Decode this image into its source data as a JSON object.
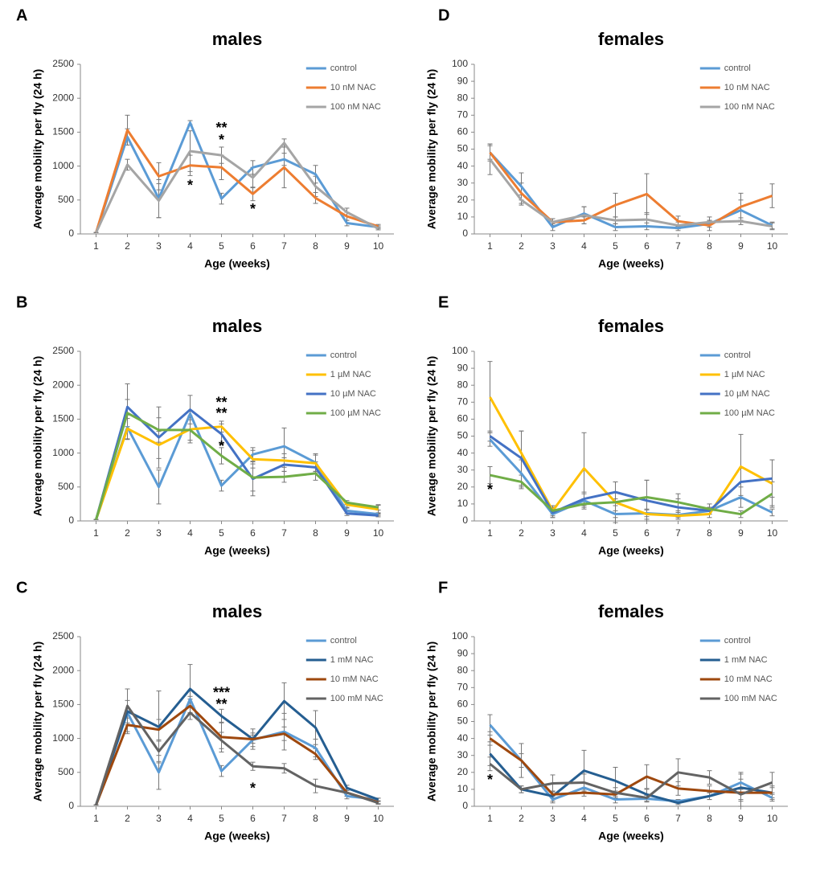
{
  "chart_data": [
    {
      "type": "line",
      "panel": "A",
      "title": "males",
      "x_label": "Age (weeks)",
      "y_label": "Average mobility per fly (24 h)",
      "x": [
        1,
        2,
        3,
        4,
        5,
        6,
        7,
        8,
        9,
        10
      ],
      "xlim": [
        0.5,
        10.5
      ],
      "xticks": [
        1,
        2,
        3,
        4,
        5,
        6,
        7,
        8,
        9,
        10
      ],
      "ylim": [
        0,
        2500
      ],
      "yticks": [
        0,
        500,
        1000,
        1500,
        2000,
        2500
      ],
      "legend": "upper right",
      "series": [
        {
          "name": "control",
          "color": "#5b9bd5",
          "values": [
            20,
            1430,
            520,
            1640,
            520,
            980,
            1100,
            880,
            160,
            100
          ],
          "errors": [
            0,
            120,
            280,
            30,
            80,
            100,
            90,
            130,
            40,
            20
          ]
        },
        {
          "name": "10 nM NAC",
          "color": "#ed7d31",
          "values": [
            20,
            1530,
            850,
            1010,
            980,
            590,
            980,
            530,
            260,
            110
          ],
          "errors": [
            0,
            220,
            200,
            150,
            180,
            100,
            300,
            80,
            60,
            30
          ]
        },
        {
          "name": "100 nM NAC",
          "color": "#a5a5a5",
          "values": [
            20,
            1020,
            490,
            1220,
            1160,
            830,
            1340,
            700,
            320,
            80
          ],
          "errors": [
            0,
            80,
            250,
            300,
            120,
            150,
            60,
            150,
            60,
            20
          ]
        }
      ],
      "annotations": [
        {
          "text": "**",
          "x": 5,
          "y": 1550,
          "color": "#a5a5a5"
        },
        {
          "text": "*",
          "x": 5,
          "y": 1370,
          "color": "#ed7d31"
        },
        {
          "text": "*",
          "x": 4,
          "y": 700,
          "color": "#ed7d31"
        },
        {
          "text": "*",
          "x": 6,
          "y": 350,
          "color": "#ed7d31"
        }
      ]
    },
    {
      "type": "line",
      "panel": "D",
      "title": "females",
      "x_label": "Age (weeks)",
      "y_label": "Average mobility per fly (24 h)",
      "x": [
        1,
        2,
        3,
        4,
        5,
        6,
        7,
        8,
        9,
        10
      ],
      "xlim": [
        0.5,
        10.5
      ],
      "xticks": [
        1,
        2,
        3,
        4,
        5,
        6,
        7,
        8,
        9,
        10
      ],
      "ylim": [
        0,
        100
      ],
      "yticks": [
        0,
        10,
        20,
        30,
        40,
        50,
        60,
        70,
        80,
        90,
        100
      ],
      "legend": "upper right",
      "series": [
        {
          "name": "control",
          "color": "#5b9bd5",
          "values": [
            48,
            28,
            4,
            12,
            4,
            4.5,
            3.5,
            6,
            14,
            5
          ],
          "errors": [
            4,
            8,
            2,
            4,
            2,
            2,
            1.5,
            2,
            6,
            2
          ]
        },
        {
          "name": "10 nM NAC",
          "color": "#ed7d31",
          "values": [
            48,
            24,
            7,
            8,
            17,
            23.5,
            7.5,
            5,
            16,
            22.5
          ],
          "errors": [
            5,
            6,
            2,
            2,
            7,
            12,
            3,
            3,
            8,
            7
          ]
        },
        {
          "name": "100 nM NAC",
          "color": "#a5a5a5",
          "values": [
            44,
            20,
            7,
            11,
            8,
            8.5,
            5,
            7,
            7.5,
            4.5
          ],
          "errors": [
            9,
            3,
            2,
            5,
            2,
            4,
            2,
            3,
            2,
            2
          ]
        }
      ],
      "annotations": []
    },
    {
      "type": "line",
      "panel": "B",
      "title": "males",
      "x_label": "Age (weeks)",
      "y_label": "Average mobility per fly (24 h)",
      "x": [
        1,
        2,
        3,
        4,
        5,
        6,
        7,
        8,
        9,
        10
      ],
      "xlim": [
        0.5,
        10.5
      ],
      "xticks": [
        1,
        2,
        3,
        4,
        5,
        6,
        7,
        8,
        9,
        10
      ],
      "ylim": [
        0,
        2500
      ],
      "yticks": [
        0,
        500,
        1000,
        1500,
        2000,
        2500
      ],
      "legend": "upper right",
      "series": [
        {
          "name": "control",
          "color": "#5b9bd5",
          "values": [
            20,
            1380,
            500,
            1580,
            520,
            980,
            1100,
            860,
            150,
            100
          ],
          "errors": [
            0,
            180,
            250,
            40,
            80,
            100,
            270,
            130,
            40,
            20
          ]
        },
        {
          "name": "1 µM NAC",
          "color": "#ffc000",
          "values": [
            20,
            1360,
            1120,
            1350,
            1390,
            910,
            890,
            850,
            240,
            170
          ],
          "errors": [
            0,
            150,
            200,
            200,
            80,
            130,
            100,
            120,
            40,
            60
          ]
        },
        {
          "name": "10  µM NAC",
          "color": "#4472c4",
          "values": [
            20,
            1680,
            1230,
            1640,
            1280,
            620,
            830,
            790,
            110,
            80
          ],
          "errors": [
            0,
            340,
            450,
            210,
            150,
            250,
            100,
            80,
            30,
            20
          ]
        },
        {
          "name": "100  µM NAC",
          "color": "#70ad47",
          "values": [
            20,
            1590,
            1340,
            1340,
            960,
            640,
            650,
            700,
            270,
            200
          ],
          "errors": [
            0,
            200,
            180,
            150,
            120,
            200,
            80,
            100,
            30,
            40
          ]
        }
      ],
      "annotations": [
        {
          "text": "**",
          "x": 5,
          "y": 1730,
          "color": "#4472c4"
        },
        {
          "text": "**",
          "x": 5,
          "y": 1570,
          "color": "#ffc000"
        },
        {
          "text": "*",
          "x": 5,
          "y": 1090,
          "color": "#70ad47"
        }
      ]
    },
    {
      "type": "line",
      "panel": "E",
      "title": "females",
      "x_label": "Age (weeks)",
      "y_label": "Average mobility per fly (24 h)",
      "x": [
        1,
        2,
        3,
        4,
        5,
        6,
        7,
        8,
        9,
        10
      ],
      "xlim": [
        0.5,
        10.5
      ],
      "xticks": [
        1,
        2,
        3,
        4,
        5,
        6,
        7,
        8,
        9,
        10
      ],
      "ylim": [
        0,
        100
      ],
      "yticks": [
        0,
        10,
        20,
        30,
        40,
        50,
        60,
        70,
        80,
        90,
        100
      ],
      "legend": "upper right",
      "series": [
        {
          "name": "control",
          "color": "#5b9bd5",
          "values": [
            48,
            28,
            4,
            12,
            4,
            4.5,
            3.5,
            6,
            14,
            5
          ],
          "errors": [
            4,
            8,
            2,
            4,
            2,
            2,
            1.5,
            2,
            6,
            2
          ]
        },
        {
          "name": "1 µM NAC",
          "color": "#ffc000",
          "values": [
            73,
            40,
            6,
            31,
            11,
            4,
            3,
            4,
            32,
            22
          ],
          "errors": [
            21,
            13,
            3,
            21,
            12,
            3,
            2,
            2,
            19,
            14
          ]
        },
        {
          "name": "10  µM NAC",
          "color": "#4472c4",
          "values": [
            50,
            37,
            5,
            13,
            17,
            12,
            8,
            6,
            23,
            25
          ],
          "errors": [
            3,
            16,
            3,
            4,
            6,
            12,
            5,
            2,
            8,
            11
          ]
        },
        {
          "name": "100  µM NAC",
          "color": "#70ad47",
          "values": [
            27,
            23,
            6,
            10,
            11,
            14,
            11,
            7,
            4,
            16
          ],
          "errors": [
            5,
            4,
            2,
            3,
            2,
            10,
            5,
            3,
            2,
            7
          ]
        }
      ],
      "annotations": [
        {
          "text": "*",
          "x": 1,
          "y": 18,
          "color": "#70ad47"
        }
      ]
    },
    {
      "type": "line",
      "panel": "C",
      "title": "males",
      "x_label": "Age (weeks)",
      "y_label": "Average mobility per fly (24 h)",
      "x": [
        1,
        2,
        3,
        4,
        5,
        6,
        7,
        8,
        9,
        10
      ],
      "xlim": [
        0.5,
        10.5
      ],
      "xticks": [
        1,
        2,
        3,
        4,
        5,
        6,
        7,
        8,
        9,
        10
      ],
      "ylim": [
        0,
        2500
      ],
      "yticks": [
        0,
        500,
        1000,
        1500,
        2000,
        2500
      ],
      "legend": "upper right",
      "series": [
        {
          "name": "control",
          "color": "#5b9bd5",
          "values": [
            20,
            1380,
            500,
            1580,
            520,
            980,
            1100,
            860,
            150,
            100
          ],
          "errors": [
            0,
            180,
            250,
            40,
            80,
            100,
            270,
            130,
            40,
            20
          ]
        },
        {
          "name": "1 mM NAC",
          "color": "#255e91",
          "values": [
            20,
            1400,
            1170,
            1730,
            1330,
            990,
            1550,
            1160,
            270,
            100
          ],
          "errors": [
            0,
            330,
            530,
            360,
            100,
            150,
            270,
            250,
            40,
            20
          ]
        },
        {
          "name": "10 mM NAC",
          "color": "#9e480e",
          "values": [
            20,
            1200,
            1130,
            1480,
            1020,
            990,
            1070,
            770,
            200,
            60
          ],
          "errors": [
            0,
            100,
            150,
            100,
            220,
            60,
            100,
            80,
            50,
            20
          ]
        },
        {
          "name": "100 mM NAC",
          "color": "#636363",
          "values": [
            20,
            1480,
            810,
            1380,
            970,
            590,
            560,
            300,
            200,
            50
          ],
          "errors": [
            0,
            250,
            150,
            100,
            120,
            60,
            70,
            100,
            50,
            20
          ]
        }
      ],
      "annotations": [
        {
          "text": "***",
          "x": 5,
          "y": 1660,
          "color": "#255e91"
        },
        {
          "text": "**",
          "x": 5,
          "y": 1490,
          "color": "#636363"
        },
        {
          "text": "*",
          "x": 6,
          "y": 250,
          "color": "#636363"
        }
      ]
    },
    {
      "type": "line",
      "panel": "F",
      "title": "females",
      "x_label": "Age (weeks)",
      "y_label": "Average mobility per fly (24 h)",
      "x": [
        1,
        2,
        3,
        4,
        5,
        6,
        7,
        8,
        9,
        10
      ],
      "xlim": [
        0.5,
        10.5
      ],
      "xticks": [
        1,
        2,
        3,
        4,
        5,
        6,
        7,
        8,
        9,
        10
      ],
      "ylim": [
        0,
        100
      ],
      "yticks": [
        0,
        10,
        20,
        30,
        40,
        50,
        60,
        70,
        80,
        90,
        100
      ],
      "legend": "upper right",
      "series": [
        {
          "name": "control",
          "color": "#5b9bd5",
          "values": [
            48,
            27,
            4,
            11,
            4,
            4.5,
            3,
            6,
            14,
            5
          ],
          "errors": [
            6,
            10,
            2,
            3,
            2,
            2,
            1,
            2,
            6,
            2
          ]
        },
        {
          "name": "1 mM NAC",
          "color": "#255e91",
          "values": [
            31,
            10,
            6,
            21,
            15,
            7,
            2,
            6,
            11,
            8
          ],
          "errors": [
            7,
            2,
            3,
            12,
            8,
            3,
            1,
            2,
            8,
            4
          ]
        },
        {
          "name": "10 mM NAC",
          "color": "#9e480e",
          "values": [
            40,
            27,
            7,
            8,
            7,
            17.5,
            10.5,
            9,
            8,
            8
          ],
          "errors": [
            4,
            4,
            2,
            2,
            2,
            7,
            4,
            3,
            8,
            3
          ]
        },
        {
          "name": "100 mM NAC",
          "color": "#636363",
          "values": [
            25,
            10,
            13.5,
            14,
            8,
            5,
            20,
            17,
            7,
            14
          ],
          "errors": [
            4,
            2,
            5,
            5,
            3,
            2,
            8,
            4,
            3,
            6
          ]
        }
      ],
      "annotations": [
        {
          "text": "*",
          "x": 1,
          "y": 15,
          "color": "#404040"
        }
      ]
    }
  ]
}
